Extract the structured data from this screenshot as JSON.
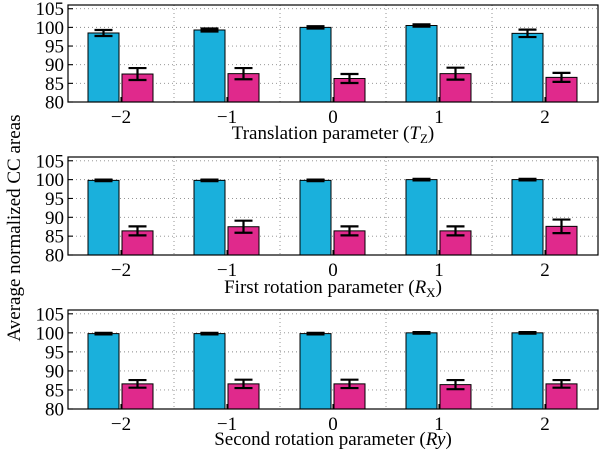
{
  "ylabel": "Average normalized CC areas",
  "colors": {
    "series_a": "#1ab0dc",
    "series_b": "#e0298c"
  },
  "chart_data": [
    {
      "type": "bar",
      "categories": [
        "−2",
        "−1",
        "0",
        "1",
        "2"
      ],
      "xlabel": {
        "prefix": "Translation parameter (",
        "symbol": "T",
        "sub": "Z",
        "suffix": ")"
      },
      "ylim": [
        80,
        106
      ],
      "yticks": [
        80,
        85,
        90,
        95,
        100,
        105
      ],
      "grid": true,
      "series": [
        {
          "values": [
            98.5,
            99.3,
            100.0,
            100.5,
            98.4
          ],
          "errors": [
            0.8,
            0.4,
            0.3,
            0.3,
            1.0
          ]
        },
        {
          "values": [
            87.5,
            87.6,
            86.3,
            87.6,
            86.6
          ],
          "errors": [
            1.6,
            1.5,
            1.2,
            1.6,
            1.2
          ]
        }
      ]
    },
    {
      "type": "bar",
      "categories": [
        "−2",
        "−1",
        "0",
        "1",
        "2"
      ],
      "xlabel": {
        "prefix": "First rotation parameter (",
        "symbol": "R",
        "sub": "X",
        "suffix": ")"
      },
      "ylim": [
        80,
        106
      ],
      "yticks": [
        80,
        85,
        90,
        95,
        100,
        105
      ],
      "grid": true,
      "series": [
        {
          "values": [
            99.8,
            99.8,
            99.8,
            100.0,
            100.0
          ],
          "errors": [
            0.2,
            0.2,
            0.2,
            0.2,
            0.2
          ]
        },
        {
          "values": [
            86.4,
            87.5,
            86.4,
            86.4,
            87.6
          ],
          "errors": [
            1.2,
            1.6,
            1.2,
            1.2,
            1.8
          ]
        }
      ]
    },
    {
      "type": "bar",
      "categories": [
        "−2",
        "−1",
        "0",
        "1",
        "2"
      ],
      "xlabel": {
        "prefix": "Second rotation parameter (",
        "symbol": "Ry",
        "sub": "",
        "suffix": ")"
      },
      "ylim": [
        80,
        106
      ],
      "yticks": [
        80,
        85,
        90,
        95,
        100,
        105
      ],
      "grid": true,
      "series": [
        {
          "values": [
            99.8,
            99.8,
            99.8,
            100.0,
            100.0
          ],
          "errors": [
            0.2,
            0.2,
            0.2,
            0.2,
            0.2
          ]
        },
        {
          "values": [
            86.6,
            86.6,
            86.6,
            86.4,
            86.6
          ],
          "errors": [
            1.0,
            1.1,
            1.1,
            1.2,
            1.0
          ]
        }
      ]
    }
  ]
}
